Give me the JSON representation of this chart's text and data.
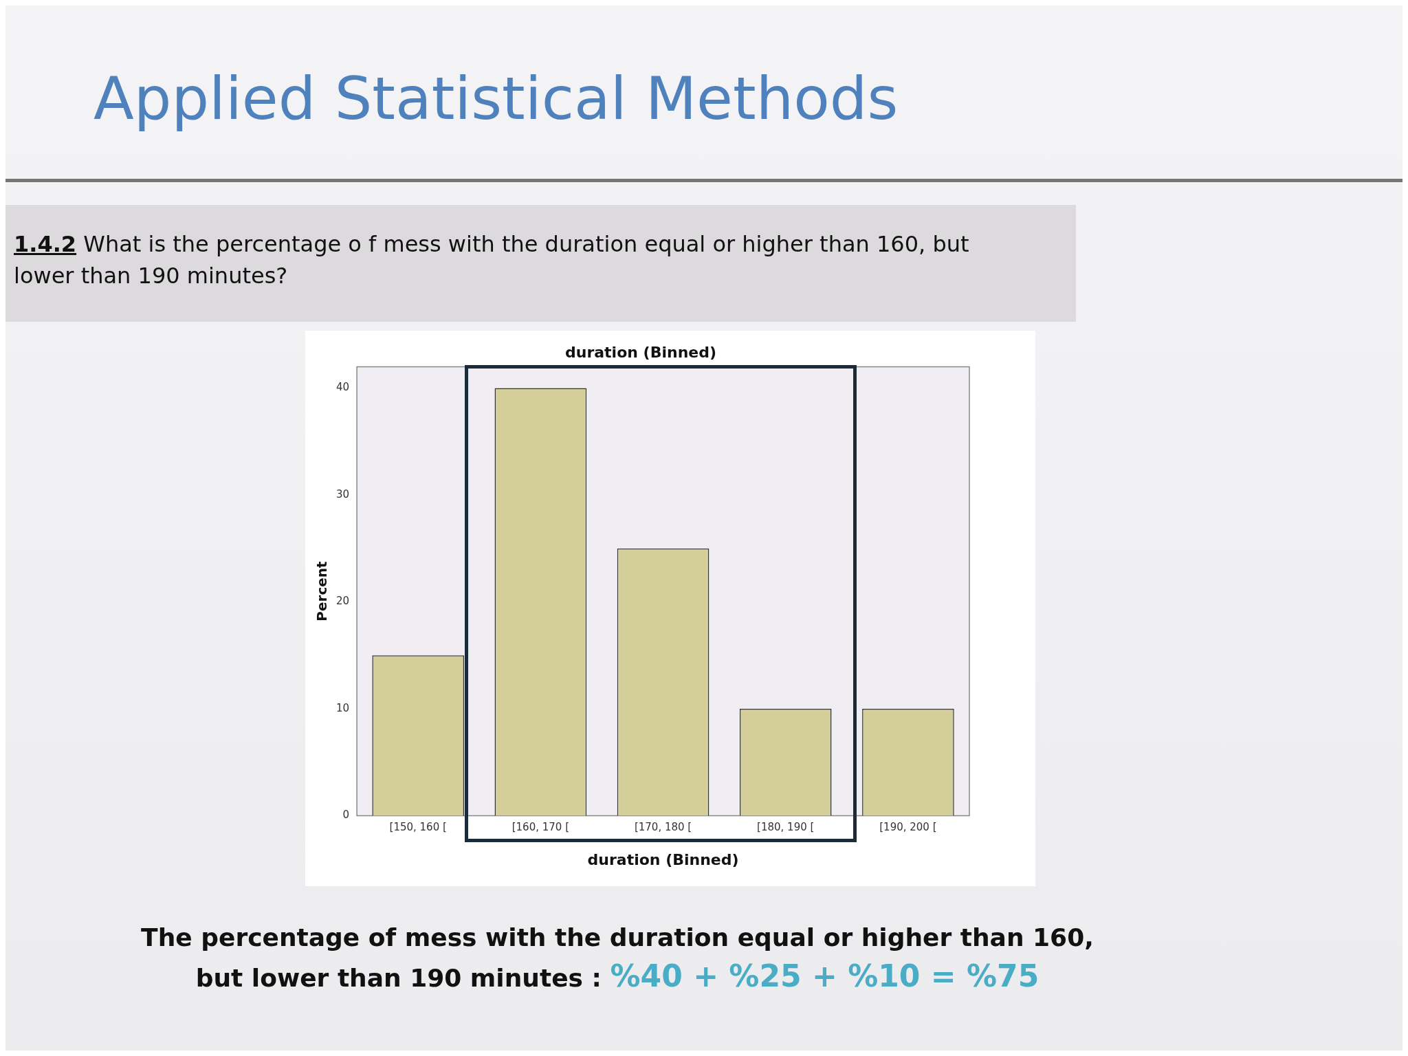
{
  "chart_data": {
    "type": "bar",
    "title": "Applied Statistical Methods",
    "subtitle": "duration (Binned)",
    "xlabel": "duration (Binned)",
    "ylabel": "Percent",
    "categories": [
      "[150, 160 [",
      "[160, 170 [",
      "[170, 180 [",
      "[180, 190 [",
      "[190, 200 ["
    ],
    "values": [
      15,
      40,
      25,
      10,
      10
    ],
    "color": "#d4cf9a",
    "ylim": [
      0,
      42
    ],
    "yticks": [
      0,
      10,
      20,
      30,
      40
    ],
    "grid": false,
    "legend": false,
    "annotations": [
      "1.4.2",
      "What is the percentage o f mess with the duration equal or higher than 160, but lower than 190 minutes?",
      "The percentage of mess with the duration equal or higher than 160, but lower than 190 minutes :",
      "%40 + %25 + %10 = %75"
    ]
  }
}
